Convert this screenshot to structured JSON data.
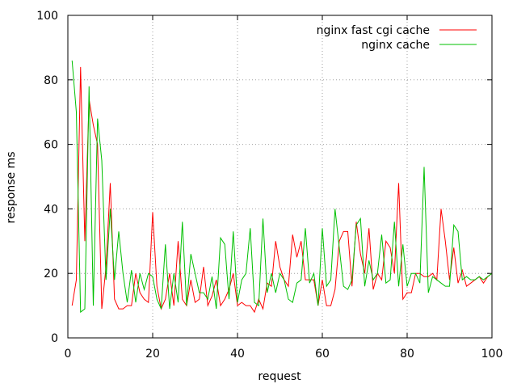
{
  "chart_data": {
    "type": "line",
    "title": "",
    "xlabel": "request",
    "ylabel": "response ms",
    "xlim": [
      0,
      100
    ],
    "ylim": [
      0,
      100
    ],
    "xticks": [
      "0",
      "20",
      "40",
      "60",
      "80",
      "100"
    ],
    "yticks": [
      "0",
      "20",
      "40",
      "60",
      "80",
      "100"
    ],
    "grid": true,
    "legend_position": "top-right",
    "x": [
      1,
      2,
      3,
      4,
      5,
      6,
      7,
      8,
      9,
      10,
      11,
      12,
      13,
      14,
      15,
      16,
      17,
      18,
      19,
      20,
      21,
      22,
      23,
      24,
      25,
      26,
      27,
      28,
      29,
      30,
      31,
      32,
      33,
      34,
      35,
      36,
      37,
      38,
      39,
      40,
      41,
      42,
      43,
      44,
      45,
      46,
      47,
      48,
      49,
      50,
      51,
      52,
      53,
      54,
      55,
      56,
      57,
      58,
      59,
      60,
      61,
      62,
      63,
      64,
      65,
      66,
      67,
      68,
      69,
      70,
      71,
      72,
      73,
      74,
      75,
      76,
      77,
      78,
      79,
      80,
      81,
      82,
      83,
      84,
      85,
      86,
      87,
      88,
      89,
      90,
      91,
      92,
      93,
      94,
      95,
      96,
      97,
      98,
      99,
      100
    ],
    "series": [
      {
        "name": "nginx fast cgi cache",
        "color": "#ff0000",
        "values": [
          10,
          18,
          84,
          30,
          74,
          66,
          60,
          9,
          22,
          48,
          12,
          9,
          9,
          10,
          10,
          20,
          14,
          12,
          11,
          39,
          16,
          9,
          12,
          20,
          10,
          30,
          12,
          10,
          18,
          11,
          12,
          22,
          10,
          13,
          18,
          10,
          12,
          15,
          20,
          10,
          11,
          10,
          10,
          8,
          12,
          9,
          17,
          16,
          30,
          22,
          18,
          16,
          32,
          25,
          30,
          18,
          18,
          18,
          10,
          18,
          10,
          10,
          15,
          30,
          33,
          33,
          16,
          36,
          26,
          20,
          34,
          15,
          20,
          18,
          30,
          28,
          20,
          48,
          12,
          14,
          14,
          20,
          20,
          19,
          19,
          20,
          18,
          40,
          30,
          18,
          28,
          17,
          21,
          16,
          17,
          18,
          19,
          17,
          19,
          20
        ],
        "line_points_note": "",
        "dummy": ""
      },
      {
        "name": "nginx cache",
        "color": "#00c000",
        "values": [
          86,
          70,
          8,
          9,
          78,
          10,
          68,
          55,
          18,
          40,
          18,
          33,
          20,
          11,
          21,
          11,
          20,
          15,
          20,
          19,
          12,
          9,
          29,
          9,
          20,
          11,
          36,
          10,
          26,
          20,
          14,
          14,
          12,
          19,
          9,
          31,
          29,
          12,
          33,
          11,
          18,
          20,
          34,
          11,
          10,
          37,
          14,
          20,
          14,
          20,
          18,
          12,
          11,
          17,
          18,
          34,
          17,
          20,
          10,
          34,
          16,
          18,
          40,
          28,
          16,
          15,
          18,
          35,
          37,
          16,
          24,
          18,
          20,
          32,
          17,
          18,
          36,
          16,
          29,
          16,
          20,
          20,
          17,
          53,
          14,
          19,
          18,
          17,
          16,
          16,
          35,
          33,
          18,
          19,
          18,
          18,
          19,
          18,
          19,
          20
        ]
      }
    ]
  }
}
